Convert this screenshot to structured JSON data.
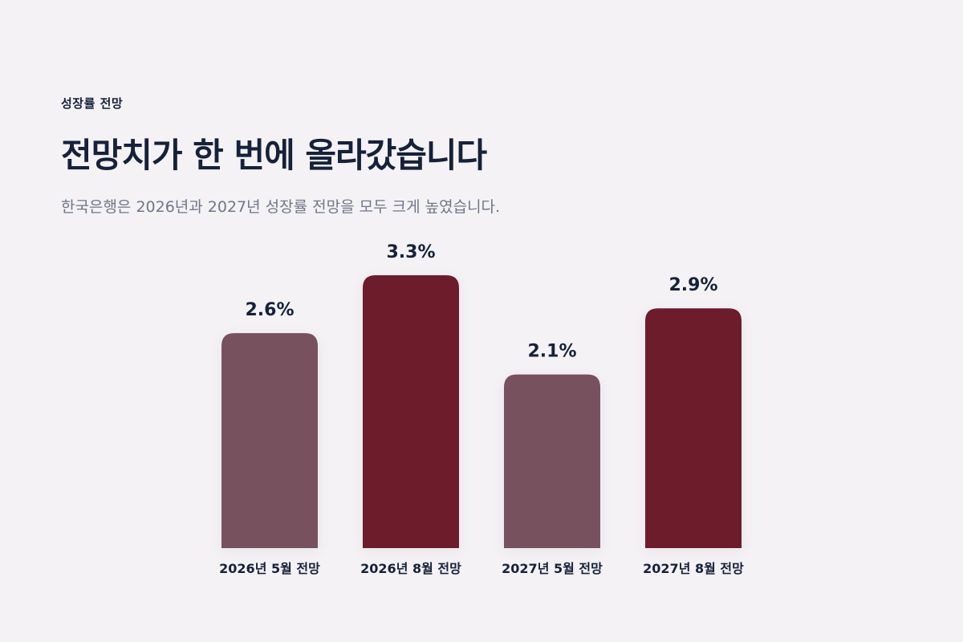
{
  "header": {
    "eyebrow": "성장률 전망",
    "title": "전망치가 한 번에 올라갔습니다",
    "subtitle": "한국은행은 2026년과 2027년 성장률 전망을 모두 크게 높였습니다."
  },
  "colors": {
    "background": "#f4f2f5",
    "bar_may": "#77515e",
    "bar_aug": "#6c1c2a",
    "text": "#16213a",
    "subtitle": "#6f7789"
  },
  "chart_data": {
    "type": "bar",
    "title": "전망치가 한 번에 올라갔습니다",
    "subtitle": "한국은행은 2026년과 2027년 성장률 전망을 모두 크게 높였습니다.",
    "xlabel": "",
    "ylabel": "",
    "unit": "%",
    "categories": [
      "2026년 5월 전망",
      "2026년 8월 전망",
      "2027년 5월 전망",
      "2027년 8월 전망"
    ],
    "values": [
      2.6,
      3.3,
      2.1,
      2.9
    ],
    "value_labels": [
      "2.6%",
      "3.3%",
      "2.1%",
      "2.9%"
    ],
    "bar_colors": [
      "#77515e",
      "#6c1c2a",
      "#77515e",
      "#6c1c2a"
    ],
    "ylim": [
      0,
      3.3
    ],
    "grid": false,
    "legend": "none"
  }
}
